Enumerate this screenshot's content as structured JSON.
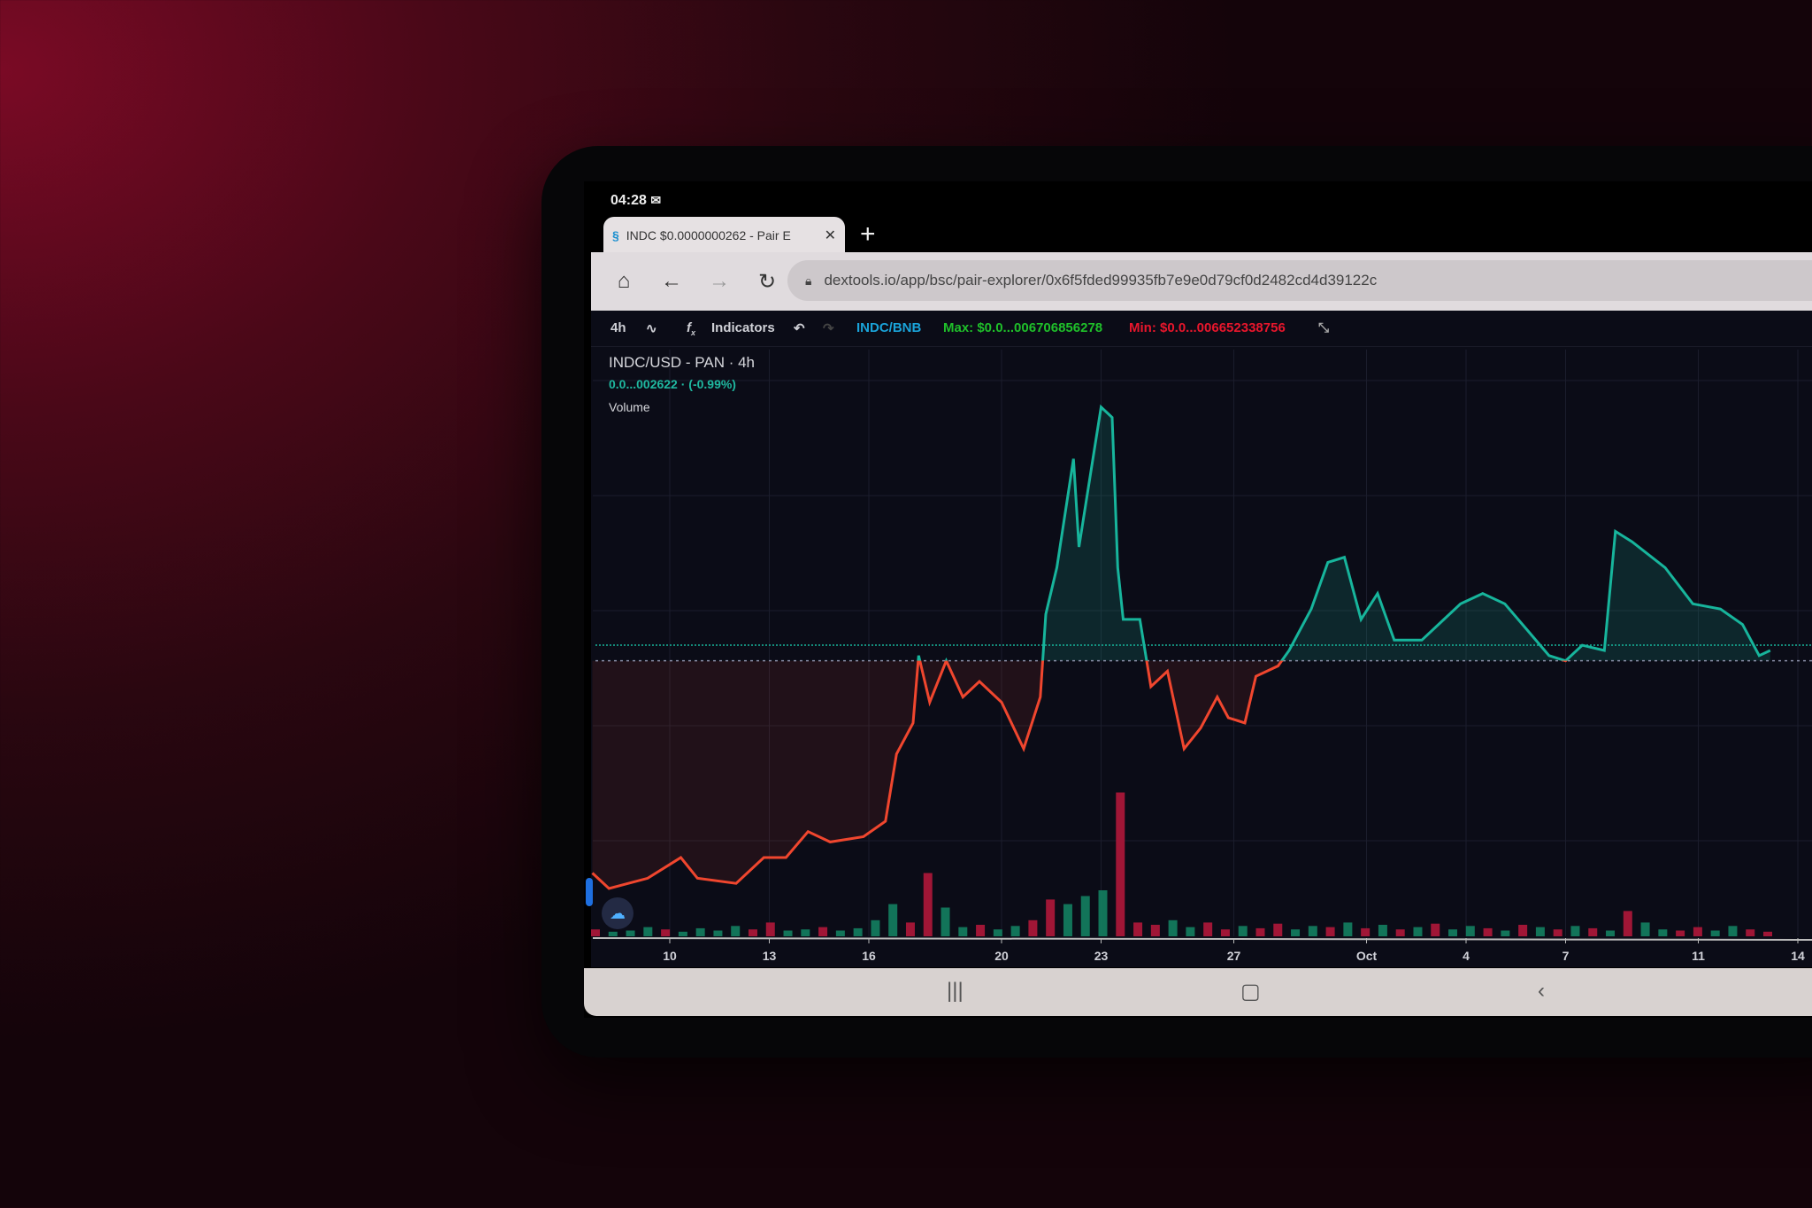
{
  "status_bar": {
    "time": "04:28",
    "notification_icon": "mail-icon"
  },
  "browser": {
    "tab": {
      "title": "INDC $0.0000000262 - Pair E",
      "favicon": "dextools-logo-icon",
      "close_icon": "close-icon"
    },
    "new_tab_icon": "plus-icon",
    "nav": {
      "home": "home-icon",
      "back": "arrow-left-icon",
      "forward": "arrow-right-icon",
      "reload": "reload-icon"
    },
    "url": "dextools.io/app/bsc/pair-explorer/0x6f5fded99935fb7e9e0d79cf0d2482cd4d39122c",
    "lock_icon": "lock-icon",
    "bookmark_icon": "star-icon"
  },
  "toolbar": {
    "interval": "4h",
    "indicators_label": "Indicators",
    "pair": "INDC/BNB",
    "max": "Max: $0.0...006706856278",
    "min": "Min: $0.0...006652338756",
    "colors": {
      "pair": "#1aa3d9",
      "max": "#1fbf2a",
      "min": "#e8162c"
    }
  },
  "legend": {
    "title": "INDC/USD - PAN · 4h",
    "value": "0.0...002622 · (-0.99%)",
    "volume_label": "Volume"
  },
  "chart_data": {
    "type": "line",
    "title": "INDC/USD - PAN · 4h",
    "x_tick_labels": [
      "10",
      "13",
      "16",
      "20",
      "23",
      "27",
      "Oct",
      "4",
      "7",
      "11",
      "14"
    ],
    "x_ticks": [
      "09-10",
      "09-13",
      "09-16",
      "09-20",
      "09-23",
      "09-27",
      "10-01",
      "10-04",
      "10-07",
      "10-11",
      "10-14"
    ],
    "y_axis_visible": false,
    "ylim": [
      0,
      100
    ],
    "reference_level": 51,
    "last_price_level": 53,
    "colors": {
      "above": "#17b59c",
      "below": "#f0462e",
      "volume_up": "#138060",
      "volume_down": "#b0173a"
    },
    "grid": true,
    "points": [
      [
        "09-07 16:00",
        10
      ],
      [
        "09-08 04:00",
        7
      ],
      [
        "09-09 08:00",
        9
      ],
      [
        "09-10 08:00",
        13
      ],
      [
        "09-10 20:00",
        9
      ],
      [
        "09-12 00:00",
        8
      ],
      [
        "09-12 20:00",
        13
      ],
      [
        "09-13 12:00",
        13
      ],
      [
        "09-14 04:00",
        18
      ],
      [
        "09-14 20:00",
        16
      ],
      [
        "09-15 20:00",
        17
      ],
      [
        "09-16 12:00",
        20
      ],
      [
        "09-16 20:00",
        33
      ],
      [
        "09-17 08:00",
        39
      ],
      [
        "09-17 12:00",
        52
      ],
      [
        "09-17 20:00",
        43
      ],
      [
        "09-18 08:00",
        51
      ],
      [
        "09-18 20:00",
        44
      ],
      [
        "09-19 08:00",
        47
      ],
      [
        "09-20 00:00",
        43
      ],
      [
        "09-20 16:00",
        34
      ],
      [
        "09-21 04:00",
        44
      ],
      [
        "09-21 08:00",
        60
      ],
      [
        "09-21 16:00",
        69
      ],
      [
        "09-22 04:00",
        90
      ],
      [
        "09-22 08:00",
        73
      ],
      [
        "09-23 00:00",
        100
      ],
      [
        "09-23 08:00",
        98
      ],
      [
        "09-23 12:00",
        69
      ],
      [
        "09-23 16:00",
        59
      ],
      [
        "09-24 04:00",
        59
      ],
      [
        "09-24 12:00",
        46
      ],
      [
        "09-25 00:00",
        49
      ],
      [
        "09-25 12:00",
        34
      ],
      [
        "09-26 00:00",
        38
      ],
      [
        "09-26 12:00",
        44
      ],
      [
        "09-26 20:00",
        40
      ],
      [
        "09-27 08:00",
        39
      ],
      [
        "09-27 16:00",
        48
      ],
      [
        "09-28 08:00",
        50
      ],
      [
        "09-28 16:00",
        53
      ],
      [
        "09-29 08:00",
        61
      ],
      [
        "09-29 20:00",
        70
      ],
      [
        "09-30 08:00",
        71
      ],
      [
        "09-30 20:00",
        59
      ],
      [
        "10-01 08:00",
        64
      ],
      [
        "10-01 20:00",
        55
      ],
      [
        "10-02 16:00",
        55
      ],
      [
        "10-03 08:00",
        59
      ],
      [
        "10-03 20:00",
        62
      ],
      [
        "10-04 12:00",
        64
      ],
      [
        "10-05 04:00",
        62
      ],
      [
        "10-05 20:00",
        57
      ],
      [
        "10-06 12:00",
        52
      ],
      [
        "10-07 00:00",
        51
      ],
      [
        "10-07 12:00",
        54
      ],
      [
        "10-08 04:00",
        53
      ],
      [
        "10-08 12:00",
        76
      ],
      [
        "10-09 00:00",
        74
      ],
      [
        "10-10 00:00",
        69
      ],
      [
        "10-10 20:00",
        62
      ],
      [
        "10-11 16:00",
        61
      ],
      [
        "10-12 08:00",
        58
      ],
      [
        "10-12 20:00",
        52
      ],
      [
        "10-13 04:00",
        53
      ]
    ],
    "volume": [
      6,
      4,
      5,
      8,
      6,
      4,
      7,
      5,
      9,
      6,
      12,
      5,
      6,
      8,
      5,
      7,
      14,
      28,
      12,
      55,
      25,
      8,
      10,
      6,
      9,
      14,
      32,
      28,
      35,
      40,
      125,
      12,
      10,
      14,
      8,
      12,
      6,
      9,
      7,
      11,
      6,
      9,
      8,
      12,
      7,
      10,
      6,
      8,
      11,
      6,
      9,
      7,
      5,
      10,
      8,
      6,
      9,
      7,
      5,
      22,
      12,
      6,
      5,
      8,
      5,
      9,
      6,
      4
    ],
    "volume_dir": "duuudhuuudduudhuuudduuduudduuuddduuddudduududududuudududududuudduuddudd"
  },
  "system_nav": {
    "recents": "recents-icon",
    "home": "home-circle-icon",
    "back": "back-chevron-icon"
  }
}
